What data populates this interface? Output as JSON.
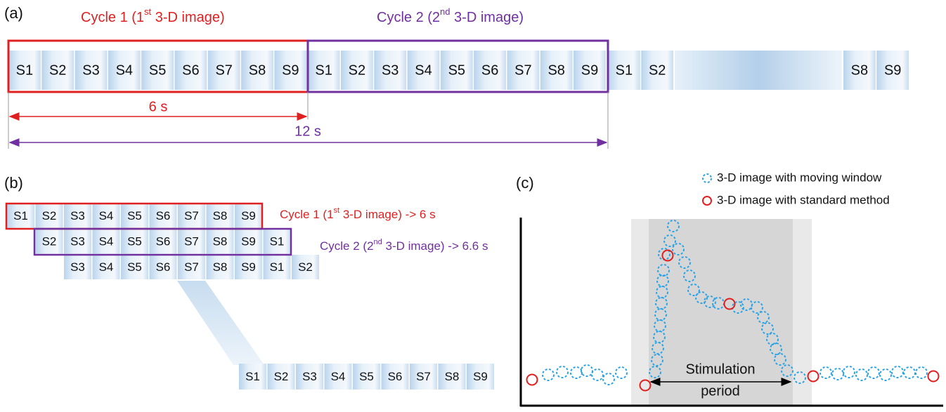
{
  "panel_a": {
    "label": "(a)",
    "cycle1": {
      "pre": "Cycle 1 (1",
      "sup": "st",
      "post": " 3-D image)"
    },
    "cycle2": {
      "pre": "Cycle 2 (2",
      "sup": "nd",
      "post": " 3-D image)"
    },
    "slots": [
      "S1",
      "S2",
      "S3",
      "S4",
      "S5",
      "S6",
      "S7",
      "S8",
      "S9"
    ],
    "duration1": "6 s",
    "duration2": "12 s"
  },
  "panel_b": {
    "label": "(b)",
    "cycle1": {
      "pre": "Cycle 1 (1",
      "sup": "st",
      "post": " 3-D image) -> 6 s"
    },
    "cycle2": {
      "pre": "Cycle 2 (2",
      "sup": "nd",
      "post": " 3-D image) -> 6.6 s"
    }
  },
  "panel_c": {
    "label": "(c)",
    "legend": [
      "3-D image with moving window",
      "3-D image with standard method"
    ],
    "annotation": [
      "Stimulation",
      "period"
    ]
  }
}
